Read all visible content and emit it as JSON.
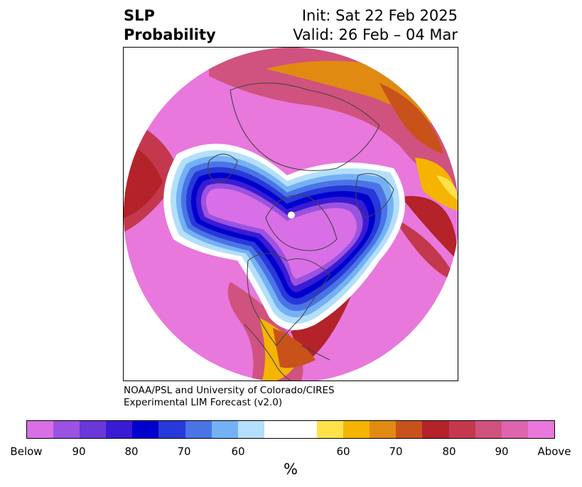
{
  "title": {
    "left_line1": "SLP",
    "left_line2": "Probability",
    "right_line1": "Init: Sat 22 Feb 2025",
    "right_line2": "Valid: 26 Feb – 04 Mar"
  },
  "credit": {
    "line1": "NOAA/PSL and University of Colorado/CIRES",
    "line2": "Experimental LIM Forecast (v2.0)"
  },
  "colorbar": {
    "unit": "%",
    "tick_labels": [
      "Below",
      "90",
      "80",
      "70",
      "60",
      "60",
      "70",
      "80",
      "90",
      "Above"
    ],
    "colors": [
      "#d86fe6",
      "#9b52e0",
      "#6a37d8",
      "#3a1bd4",
      "#0000cc",
      "#2739d8",
      "#4a74e6",
      "#74b1f4",
      "#b3dffb",
      "#ffffff",
      "#ffe24a",
      "#f4b400",
      "#e08a12",
      "#c8521a",
      "#b4222a",
      "#c4384e",
      "#d0527e",
      "#de64ae",
      "#e878dc"
    ]
  }
}
